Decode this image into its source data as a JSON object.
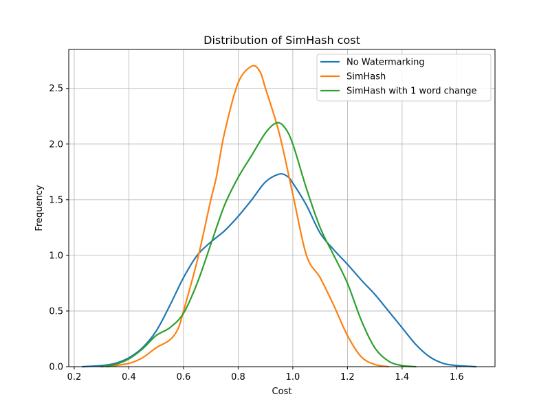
{
  "chart_data": {
    "type": "line",
    "title": "Distribution of SimHash cost",
    "xlabel": "Cost",
    "ylabel": "Frequency",
    "xlim": [
      0.18,
      1.74
    ],
    "ylim": [
      0.0,
      2.85
    ],
    "xticks": [
      0.2,
      0.4,
      0.6,
      0.8,
      1.0,
      1.2,
      1.4,
      1.6
    ],
    "xtick_labels": [
      "0.2",
      "0.4",
      "0.6",
      "0.8",
      "1.0",
      "1.2",
      "1.4",
      "1.6"
    ],
    "yticks": [
      0.0,
      0.5,
      1.0,
      1.5,
      2.0,
      2.5
    ],
    "ytick_labels": [
      "0.0",
      "0.5",
      "1.0",
      "1.5",
      "2.0",
      "2.5"
    ],
    "grid": true,
    "legend_position": "top-right",
    "series": [
      {
        "name": "No Watermarking",
        "color": "#1f77b4",
        "x": [
          0.23,
          0.3,
          0.35,
          0.4,
          0.45,
          0.5,
          0.55,
          0.6,
          0.65,
          0.7,
          0.75,
          0.8,
          0.85,
          0.9,
          0.95,
          0.98,
          1.0,
          1.05,
          1.1,
          1.15,
          1.2,
          1.25,
          1.3,
          1.35,
          1.4,
          1.45,
          1.5,
          1.55,
          1.6,
          1.67
        ],
        "y": [
          0.0,
          0.01,
          0.03,
          0.08,
          0.17,
          0.32,
          0.55,
          0.8,
          1.0,
          1.12,
          1.22,
          1.35,
          1.5,
          1.66,
          1.73,
          1.71,
          1.65,
          1.45,
          1.2,
          1.05,
          0.92,
          0.78,
          0.65,
          0.5,
          0.35,
          0.2,
          0.09,
          0.03,
          0.01,
          0.0
        ]
      },
      {
        "name": "SimHash",
        "color": "#ff7f0e",
        "x": [
          0.32,
          0.4,
          0.45,
          0.5,
          0.55,
          0.58,
          0.6,
          0.65,
          0.7,
          0.72,
          0.75,
          0.8,
          0.85,
          0.88,
          0.9,
          0.95,
          1.0,
          1.05,
          1.1,
          1.15,
          1.2,
          1.25,
          1.3,
          1.35
        ],
        "y": [
          0.0,
          0.03,
          0.08,
          0.17,
          0.24,
          0.34,
          0.5,
          0.95,
          1.5,
          1.7,
          2.1,
          2.55,
          2.7,
          2.65,
          2.5,
          2.1,
          1.55,
          1.0,
          0.8,
          0.55,
          0.28,
          0.09,
          0.02,
          0.0
        ]
      },
      {
        "name": "SimHash with 1 word change",
        "color": "#2ca02c",
        "x": [
          0.3,
          0.35,
          0.4,
          0.45,
          0.5,
          0.55,
          0.6,
          0.65,
          0.7,
          0.75,
          0.8,
          0.85,
          0.9,
          0.94,
          0.97,
          1.0,
          1.05,
          1.1,
          1.15,
          1.2,
          1.25,
          1.3,
          1.35,
          1.4,
          1.45
        ],
        "y": [
          0.0,
          0.02,
          0.07,
          0.16,
          0.28,
          0.35,
          0.48,
          0.75,
          1.1,
          1.45,
          1.7,
          1.9,
          2.1,
          2.19,
          2.15,
          2.0,
          1.6,
          1.25,
          1.0,
          0.75,
          0.42,
          0.17,
          0.05,
          0.01,
          0.0
        ]
      }
    ]
  }
}
